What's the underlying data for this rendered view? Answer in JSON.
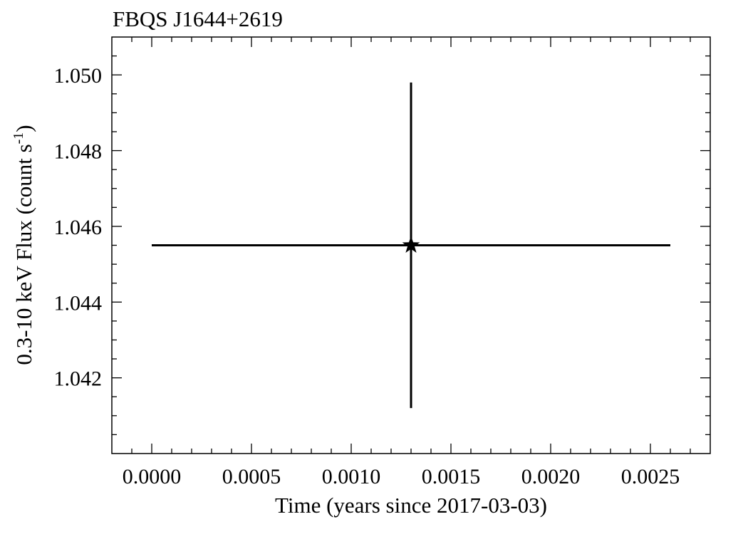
{
  "chart_data": {
    "type": "scatter",
    "title": "FBQS J1644+2619",
    "xlabel": "Time (years since 2017-03-03)",
    "ylabel_main": "0.3-10 keV Flux (count s",
    "ylabel_sup": "-1",
    "ylabel_close": ")",
    "xlim": [
      -0.0002,
      0.0028
    ],
    "ylim": [
      1.04,
      1.051
    ],
    "xticks": [
      "0.0000",
      "0.0005",
      "0.0010",
      "0.0015",
      "0.0020",
      "0.0025"
    ],
    "xtick_values": [
      0.0,
      0.0005,
      0.001,
      0.0015,
      0.002,
      0.0025
    ],
    "xminor_step": 0.0001,
    "yticks": [
      "1.042",
      "1.044",
      "1.046",
      "1.048",
      "1.050"
    ],
    "ytick_values": [
      1.042,
      1.044,
      1.046,
      1.048,
      1.05
    ],
    "yminor_step": 0.0005,
    "grid": false,
    "marker": "star",
    "points": [
      {
        "x": 0.0013,
        "y": 1.0455,
        "xerr": 0.0013,
        "yerr": 0.0043
      }
    ]
  }
}
